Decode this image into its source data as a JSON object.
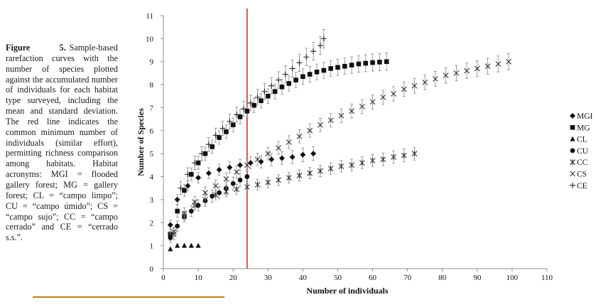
{
  "caption": {
    "label": "Figure 5.",
    "text": "Sample-based rarefaction curves with the number of species plotted against the accumulated number of individuals for each habitat type surveyed, including the mean and standard deviation. The red line indicates the common minimum number of individuals (similar effort), permitting richness comparison among habitats. Habitat acronyms: MGI = flooded gallery forest; MG = gallery forest; CL = “campo limpo”; CU = “campo úmido”; CS = “campo sujo”; CC = “campo cerrado” and CE = “cerrado s.s.”."
  },
  "colors": {
    "reference_line": "#c0392b",
    "caption_rule": "#b5802b",
    "axis": "#8c8c8c",
    "marker": "#111111",
    "error_bar": "#8a8a8a"
  },
  "chart_data": {
    "type": "scatter",
    "xlabel": "Number of individuals",
    "ylabel": "Number of Species",
    "xlim": [
      0,
      110
    ],
    "ylim": [
      0,
      11
    ],
    "xticks": [
      0,
      10,
      20,
      30,
      40,
      50,
      60,
      70,
      80,
      90,
      100,
      110
    ],
    "yticks": [
      0,
      1,
      2,
      3,
      4,
      5,
      6,
      7,
      8,
      9,
      10,
      11
    ],
    "grid": false,
    "legend_position": "right",
    "reference_line": {
      "x": 24,
      "color": "#c0392b"
    },
    "series": [
      {
        "name": "MGI",
        "marker": "diamond",
        "error": 0.3,
        "x": [
          2,
          4,
          7,
          10,
          13,
          16,
          19,
          22,
          25,
          28,
          31,
          34,
          37,
          40,
          43
        ],
        "y": [
          1.9,
          3.0,
          3.6,
          3.95,
          4.15,
          4.3,
          4.4,
          4.5,
          4.6,
          4.65,
          4.75,
          4.8,
          4.85,
          4.95,
          5.0
        ]
      },
      {
        "name": "MG",
        "marker": "square",
        "error": 0.38,
        "x": [
          2,
          4,
          6,
          8,
          10,
          12,
          14,
          16,
          18,
          20,
          22,
          24,
          26,
          28,
          30,
          32,
          34,
          36,
          38,
          40,
          42,
          44,
          46,
          48,
          50,
          52,
          54,
          56,
          58,
          60,
          62,
          64
        ],
        "y": [
          1.5,
          2.5,
          3.4,
          4.1,
          4.6,
          5.0,
          5.3,
          5.7,
          5.95,
          6.25,
          6.6,
          6.85,
          7.1,
          7.3,
          7.5,
          7.7,
          7.9,
          8.05,
          8.2,
          8.35,
          8.45,
          8.55,
          8.62,
          8.7,
          8.75,
          8.8,
          8.85,
          8.9,
          8.93,
          8.96,
          8.98,
          9.0
        ]
      },
      {
        "name": "CL",
        "marker": "triangle",
        "error": 0,
        "x": [
          2,
          4,
          6,
          8,
          10
        ],
        "y": [
          0.85,
          1.0,
          1.0,
          1.0,
          1.0
        ]
      },
      {
        "name": "CU",
        "marker": "circle",
        "error": 0.3,
        "x": [
          2,
          4,
          6,
          8,
          10,
          12,
          14,
          16,
          18,
          20,
          22,
          24
        ],
        "y": [
          1.35,
          1.85,
          2.25,
          2.5,
          2.75,
          2.95,
          3.15,
          3.3,
          3.5,
          3.7,
          3.85,
          4.0
        ]
      },
      {
        "name": "CC",
        "marker": "asterisk",
        "error": 0.28,
        "x": [
          3,
          6,
          9,
          12,
          15,
          18,
          21,
          24,
          27,
          30,
          33,
          36,
          39,
          42,
          45,
          48,
          51,
          54,
          57,
          60,
          63,
          66,
          69,
          72
        ],
        "y": [
          1.6,
          2.3,
          2.75,
          3.0,
          3.2,
          3.35,
          3.45,
          3.55,
          3.65,
          3.75,
          3.85,
          3.95,
          4.05,
          4.15,
          4.25,
          4.35,
          4.45,
          4.5,
          4.6,
          4.7,
          4.75,
          4.85,
          4.92,
          5.0
        ]
      },
      {
        "name": "CS",
        "marker": "x",
        "error": 0.35,
        "x": [
          3,
          6,
          9,
          12,
          15,
          18,
          21,
          24,
          27,
          30,
          33,
          36,
          39,
          42,
          45,
          48,
          51,
          54,
          57,
          60,
          63,
          66,
          69,
          72,
          75,
          78,
          81,
          84,
          87,
          90,
          93,
          96,
          99
        ],
        "y": [
          1.5,
          2.4,
          2.9,
          3.3,
          3.6,
          3.9,
          4.2,
          4.5,
          4.75,
          5.0,
          5.25,
          5.5,
          5.75,
          6.0,
          6.25,
          6.45,
          6.65,
          6.85,
          7.05,
          7.25,
          7.45,
          7.6,
          7.8,
          7.95,
          8.1,
          8.25,
          8.4,
          8.5,
          8.6,
          8.7,
          8.8,
          8.9,
          9.0
        ]
      },
      {
        "name": "CE",
        "marker": "plus",
        "error": 0.4,
        "x": [
          5,
          7,
          9,
          11,
          13,
          15,
          17,
          19,
          21,
          23,
          25,
          27,
          29,
          31,
          33,
          35,
          37,
          39,
          41,
          43,
          45,
          46
        ],
        "y": [
          3.5,
          4.1,
          4.6,
          5.0,
          5.4,
          5.8,
          6.1,
          6.4,
          6.7,
          6.95,
          7.2,
          7.45,
          7.7,
          7.95,
          8.2,
          8.45,
          8.7,
          8.95,
          9.2,
          9.45,
          9.7,
          10.0
        ]
      }
    ]
  }
}
